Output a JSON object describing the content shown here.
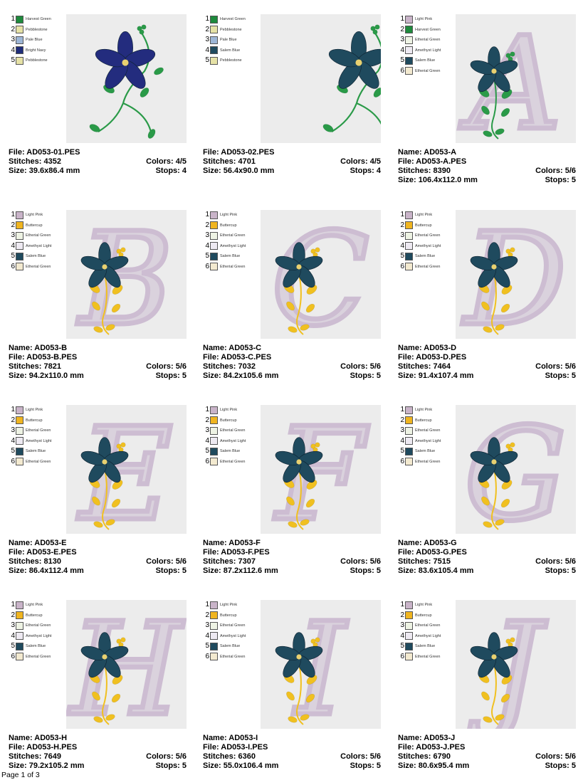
{
  "designs": [
    {
      "name": "",
      "file": "File: AD053-01.PES",
      "stitches": "Stitches: 4352",
      "size": "Size: 39.6x86.4 mm",
      "colors_count": "Colors: 4/5",
      "stops": "Stops: 4",
      "letter": "",
      "motif": "vine-navy",
      "colors": [
        {
          "num": "1",
          "name": "Harvest Green",
          "hex": "#1e8a3c"
        },
        {
          "num": "2",
          "name": "Pebblestone",
          "hex": "#e6e2a6"
        },
        {
          "num": "3",
          "name": "Pale Blue",
          "hex": "#9db6d6"
        },
        {
          "num": "4",
          "name": "Bright Navy",
          "hex": "#1f2d7a"
        },
        {
          "num": "5",
          "name": "Pebblestone",
          "hex": "#e6e2a6"
        }
      ]
    },
    {
      "name": "",
      "file": "File: AD053-02.PES",
      "stitches": "Stitches: 4701",
      "size": "Size: 56.4x90.0 mm",
      "colors_count": "Colors: 4/5",
      "stops": "Stops: 4",
      "letter": "",
      "motif": "vine-teal",
      "colors": [
        {
          "num": "1",
          "name": "Harvest Green",
          "hex": "#1e8a3c"
        },
        {
          "num": "2",
          "name": "Pebblestone",
          "hex": "#e6e2a6"
        },
        {
          "num": "3",
          "name": "Pale Blue",
          "hex": "#9db6d6"
        },
        {
          "num": "4",
          "name": "Salem Blue",
          "hex": "#1f4a5e"
        },
        {
          "num": "5",
          "name": "Pebblestone",
          "hex": "#e6e2a6"
        }
      ]
    },
    {
      "name": "Name: AD053-A",
      "file": "File: AD053-A.PES",
      "stitches": "Stitches: 8390",
      "size": "Size: 106.4x112.0 mm",
      "colors_count": "Colors: 5/6",
      "stops": "Stops: 5",
      "letter": "A",
      "motif": "letter-green",
      "colors": [
        {
          "num": "1",
          "name": "Light Pink",
          "hex": "#c9b4c9"
        },
        {
          "num": "2",
          "name": "Harvest Green",
          "hex": "#1e8a3c"
        },
        {
          "num": "3",
          "name": "Etherial Green",
          "hex": "#eef3e4"
        },
        {
          "num": "4",
          "name": "Amethyst Light",
          "hex": "#eeeaf2"
        },
        {
          "num": "5",
          "name": "Salem Blue",
          "hex": "#1f4a5e"
        },
        {
          "num": "6",
          "name": "Etherial Green",
          "hex": "#f3ead0"
        }
      ]
    },
    {
      "name": "Name: AD053-B",
      "file": "File: AD053-B.PES",
      "stitches": "Stitches: 7821",
      "size": "Size: 94.2x110.0 mm",
      "colors_count": "Colors: 5/6",
      "stops": "Stops: 5",
      "letter": "B",
      "motif": "letter-yellow",
      "colors": [
        {
          "num": "1",
          "name": "Light Pink",
          "hex": "#c9b4c9"
        },
        {
          "num": "2",
          "name": "Buttercup",
          "hex": "#f0b520"
        },
        {
          "num": "3",
          "name": "Etherial Green",
          "hex": "#eef3e4"
        },
        {
          "num": "4",
          "name": "Amethyst Light",
          "hex": "#eeeaf2"
        },
        {
          "num": "5",
          "name": "Salem Blue",
          "hex": "#1f4a5e"
        },
        {
          "num": "6",
          "name": "Etherial Green",
          "hex": "#f3ead0"
        }
      ]
    },
    {
      "name": "Name: AD053-C",
      "file": "File: AD053-C.PES",
      "stitches": "Stitches: 7032",
      "size": "Size: 84.2x105.6 mm",
      "colors_count": "Colors: 5/6",
      "stops": "Stops: 5",
      "letter": "C",
      "motif": "letter-yellow",
      "colors": [
        {
          "num": "1",
          "name": "Light Pink",
          "hex": "#c9b4c9"
        },
        {
          "num": "2",
          "name": "Buttercup",
          "hex": "#f0b520"
        },
        {
          "num": "3",
          "name": "Etherial Green",
          "hex": "#eef3e4"
        },
        {
          "num": "4",
          "name": "Amethyst Light",
          "hex": "#eeeaf2"
        },
        {
          "num": "5",
          "name": "Salem Blue",
          "hex": "#1f4a5e"
        },
        {
          "num": "6",
          "name": "Etherial Green",
          "hex": "#f3ead0"
        }
      ]
    },
    {
      "name": "Name: AD053-D",
      "file": "File: AD053-D.PES",
      "stitches": "Stitches: 7464",
      "size": "Size: 91.4x107.4 mm",
      "colors_count": "Colors: 5/6",
      "stops": "Stops: 5",
      "letter": "D",
      "motif": "letter-yellow",
      "colors": [
        {
          "num": "1",
          "name": "Light Pink",
          "hex": "#c9b4c9"
        },
        {
          "num": "2",
          "name": "Buttercup",
          "hex": "#f0b520"
        },
        {
          "num": "3",
          "name": "Etherial Green",
          "hex": "#eef3e4"
        },
        {
          "num": "4",
          "name": "Amethyst Light",
          "hex": "#eeeaf2"
        },
        {
          "num": "5",
          "name": "Salem Blue",
          "hex": "#1f4a5e"
        },
        {
          "num": "6",
          "name": "Etherial Green",
          "hex": "#f3ead0"
        }
      ]
    },
    {
      "name": "Name: AD053-E",
      "file": "File: AD053-E.PES",
      "stitches": "Stitches: 8130",
      "size": "Size: 86.4x112.4 mm",
      "colors_count": "Colors: 5/6",
      "stops": "Stops: 5",
      "letter": "E",
      "motif": "letter-yellow",
      "colors": [
        {
          "num": "1",
          "name": "Light Pink",
          "hex": "#c9b4c9"
        },
        {
          "num": "2",
          "name": "Buttercup",
          "hex": "#f0b520"
        },
        {
          "num": "3",
          "name": "Etherial Green",
          "hex": "#eef3e4"
        },
        {
          "num": "4",
          "name": "Amethyst Light",
          "hex": "#eeeaf2"
        },
        {
          "num": "5",
          "name": "Salem Blue",
          "hex": "#1f4a5e"
        },
        {
          "num": "6",
          "name": "Etherial Green",
          "hex": "#f3ead0"
        }
      ]
    },
    {
      "name": "Name: AD053-F",
      "file": "File: AD053-F.PES",
      "stitches": "Stitches: 7307",
      "size": "Size: 87.2x112.6 mm",
      "colors_count": "Colors: 5/6",
      "stops": "Stops: 5",
      "letter": "F",
      "motif": "letter-yellow",
      "colors": [
        {
          "num": "1",
          "name": "Light Pink",
          "hex": "#c9b4c9"
        },
        {
          "num": "2",
          "name": "Buttercup",
          "hex": "#f0b520"
        },
        {
          "num": "3",
          "name": "Etherial Green",
          "hex": "#eef3e4"
        },
        {
          "num": "4",
          "name": "Amethyst Light",
          "hex": "#eeeaf2"
        },
        {
          "num": "5",
          "name": "Salem Blue",
          "hex": "#1f4a5e"
        },
        {
          "num": "6",
          "name": "Etherial Green",
          "hex": "#f3ead0"
        }
      ]
    },
    {
      "name": "Name: AD053-G",
      "file": "File: AD053-G.PES",
      "stitches": "Stitches: 7515",
      "size": "Size: 83.6x105.4 mm",
      "colors_count": "Colors: 5/6",
      "stops": "Stops: 5",
      "letter": "G",
      "motif": "letter-yellow",
      "colors": [
        {
          "num": "1",
          "name": "Light Pink",
          "hex": "#c9b4c9"
        },
        {
          "num": "2",
          "name": "Buttercup",
          "hex": "#f0b520"
        },
        {
          "num": "3",
          "name": "Etherial Green",
          "hex": "#eef3e4"
        },
        {
          "num": "4",
          "name": "Amethyst Light",
          "hex": "#eeeaf2"
        },
        {
          "num": "5",
          "name": "Salem Blue",
          "hex": "#1f4a5e"
        },
        {
          "num": "6",
          "name": "Etherial Green",
          "hex": "#f3ead0"
        }
      ]
    },
    {
      "name": "Name: AD053-H",
      "file": "File: AD053-H.PES",
      "stitches": "Stitches: 7649",
      "size": "Size: 79.2x105.2 mm",
      "colors_count": "Colors: 5/6",
      "stops": "Stops: 5",
      "letter": "H",
      "motif": "letter-yellow",
      "colors": [
        {
          "num": "1",
          "name": "Light Pink",
          "hex": "#c9b4c9"
        },
        {
          "num": "2",
          "name": "Buttercup",
          "hex": "#f0b520"
        },
        {
          "num": "3",
          "name": "Etherial Green",
          "hex": "#eef3e4"
        },
        {
          "num": "4",
          "name": "Amethyst Light",
          "hex": "#eeeaf2"
        },
        {
          "num": "5",
          "name": "Salem Blue",
          "hex": "#1f4a5e"
        },
        {
          "num": "6",
          "name": "Etherial Green",
          "hex": "#f3ead0"
        }
      ]
    },
    {
      "name": "Name: AD053-I",
      "file": "File: AD053-I.PES",
      "stitches": "Stitches: 6360",
      "size": "Size: 55.0x106.4 mm",
      "colors_count": "Colors: 5/6",
      "stops": "Stops: 5",
      "letter": "I",
      "motif": "letter-yellow",
      "colors": [
        {
          "num": "1",
          "name": "Light Pink",
          "hex": "#c9b4c9"
        },
        {
          "num": "2",
          "name": "Buttercup",
          "hex": "#f0b520"
        },
        {
          "num": "3",
          "name": "Etherial Green",
          "hex": "#eef3e4"
        },
        {
          "num": "4",
          "name": "Amethyst Light",
          "hex": "#eeeaf2"
        },
        {
          "num": "5",
          "name": "Salem Blue",
          "hex": "#1f4a5e"
        },
        {
          "num": "6",
          "name": "Etherial Green",
          "hex": "#f3ead0"
        }
      ]
    },
    {
      "name": "Name: AD053-J",
      "file": "File: AD053-J.PES",
      "stitches": "Stitches: 6790",
      "size": "Size: 80.6x95.4 mm",
      "colors_count": "Colors: 5/6",
      "stops": "Stops: 5",
      "letter": "J",
      "motif": "letter-yellow",
      "colors": [
        {
          "num": "1",
          "name": "Light Pink",
          "hex": "#c9b4c9"
        },
        {
          "num": "2",
          "name": "Buttercup",
          "hex": "#f0b520"
        },
        {
          "num": "3",
          "name": "Etherial Green",
          "hex": "#eef3e4"
        },
        {
          "num": "4",
          "name": "Amethyst Light",
          "hex": "#eeeaf2"
        },
        {
          "num": "5",
          "name": "Salem Blue",
          "hex": "#1f4a5e"
        },
        {
          "num": "6",
          "name": "Etherial Green",
          "hex": "#f3ead0"
        }
      ]
    }
  ],
  "footer": {
    "page": "Page 1 of 3"
  },
  "palette": {
    "thumb_bg": "#ececec",
    "letter": "#cdbdd2",
    "petal_teal": "#1f4a5e",
    "petal_navy": "#232c7e",
    "leaf_green": "#2a9a48",
    "leaf_yellow": "#f0c020"
  }
}
